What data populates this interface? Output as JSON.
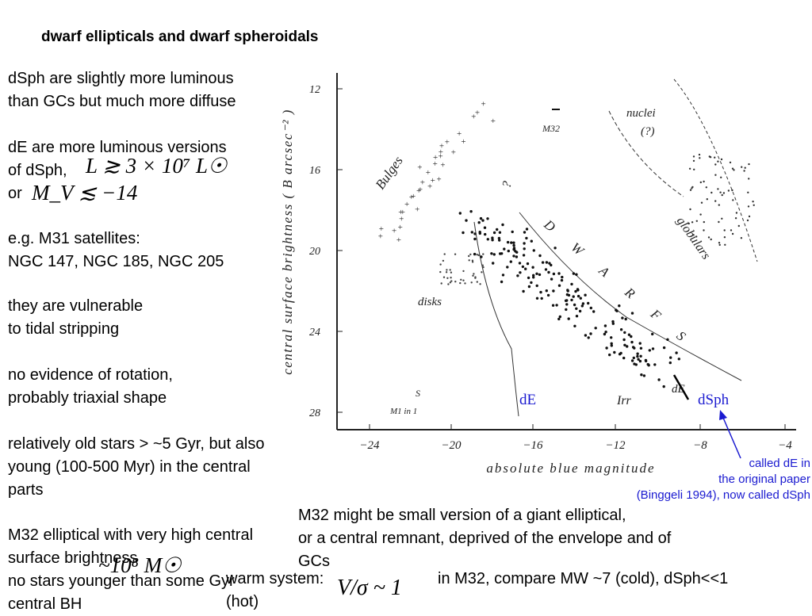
{
  "title": "dwarf ellipticals and dwarf spheroidals",
  "left_text": {
    "p1": [
      "dSph are slightly more luminous",
      "than GCs but much more diffuse"
    ],
    "p2": [
      "dE are more luminous versions",
      "of dSph,"
    ],
    "or_label": "or",
    "lum_formula": "L ≳ 3 × 10⁷ L☉",
    "mv_formula": "M_V ≲ −14",
    "p3": [
      "e.g. M31 satellites:",
      "NGC 147, NGC 185, NGC 205"
    ],
    "p4": [
      "they are vulnerable",
      "to tidal stripping"
    ],
    "p5": [
      "no evidence of rotation,",
      "probably triaxial shape"
    ],
    "p6": [
      "relatively old stars > ~5 Gyr,  but also",
      "young (100-500 Myr) in the central",
      "parts"
    ],
    "p7": [
      "M32 elliptical with very high central",
      "surface brightness",
      "no stars younger than some Gyr",
      "central BH"
    ],
    "mass_formula": "~10⁸ M☉",
    "warm_system": "warm system:",
    "hot": "(hot)",
    "vsigma_formula": "V/σ ~ 1"
  },
  "right_text": {
    "m32_lines": [
      "M32 might be small version of a giant elliptical,",
      "or a central remnant, deprived of the envelope and of",
      "GCs"
    ],
    "compare": "in M32,  compare MW ~7 (cold),  dSph<<1"
  },
  "annotation": {
    "lines": [
      "called dE in",
      "the original paper",
      "(Binggeli 1994), now called dSph"
    ]
  },
  "figure": {
    "y_ticks": [
      "12",
      "16",
      "20",
      "24",
      "28"
    ],
    "x_ticks": [
      "−24",
      "−20",
      "−16",
      "−12",
      "−8",
      "−4"
    ],
    "ylabel": "central surface brightness ( B arcsec⁻² )",
    "xlabel": "absolute blue magnitude",
    "region_labels": {
      "bulges": "Bulges",
      "m32": "M32",
      "nuclei": "nuclei",
      "nuclei_q": "(?)",
      "globulars": "globulars",
      "dwarf": "D W A R F S",
      "disks": "disks",
      "irr": "Irr",
      "de_fig": "dE",
      "q": "?",
      "s_label": "S",
      "m1": "M1 in 1"
    },
    "overlay": {
      "dE": "dE",
      "dSph": "dSph"
    },
    "colors": {
      "overlay": "#1a1ad0",
      "ink": "#222222"
    }
  }
}
